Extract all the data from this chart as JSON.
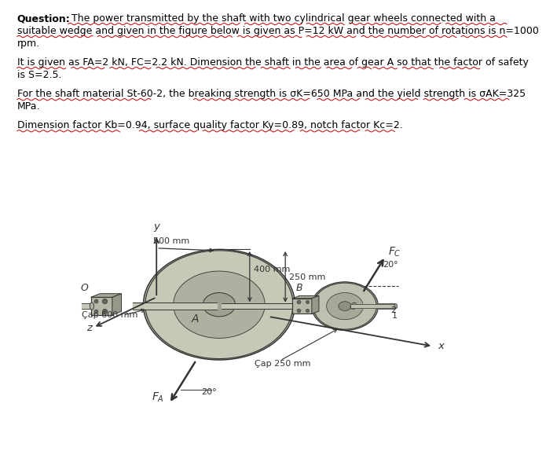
{
  "bg_color": "#ffffff",
  "text_color": "#000000",
  "dark": "#333333",
  "gear_A_face": "#c8c8b8",
  "gear_A_edge": "#888880",
  "gear_C_face": "#b8b8a8",
  "gear_C_edge": "#888880",
  "shaft_face": "#c0c0b0",
  "bearing_face": "#a8a898",
  "red_wave": "#cc0000",
  "line1a": "Question:",
  "line1b": " The power transmitted by the shaft with two cylindrical gear wheels connected with a",
  "line2": "suitable wedge and given in the figure below is given as P=12 kW and the number of rotations is n=1000",
  "line3": "rpm.",
  "line4": "It is given as FA=2 kN, FC=2.2 kN. Dimension the shaft in the area of gear A so that the factor of safety",
  "line5": "is S=2.5.",
  "line6": "For the shaft material St-60-2, the breaking strength is σK=650 MPa and the yield strength is σAK=325",
  "line7": "MPa.",
  "line8": "Dimension factor Kb=0.94, surface quality factor Ky=0.89, notch factor Kc=2.",
  "label_500mm": "500 mm",
  "label_400mm": "400 mm",
  "label_250mm": "250 mm",
  "label_cap600": "Çap 600 mm",
  "label_cap250": "Çap 250 mm",
  "label_FA": "$F_A$",
  "label_FC": "$F_C$",
  "label_20": "20°",
  "label_O": "O",
  "label_A": "A",
  "label_B": "B",
  "label_C": "C",
  "label_x": "x",
  "label_y": "y",
  "label_z": "z",
  "label_2": "2",
  "label_1": "1"
}
